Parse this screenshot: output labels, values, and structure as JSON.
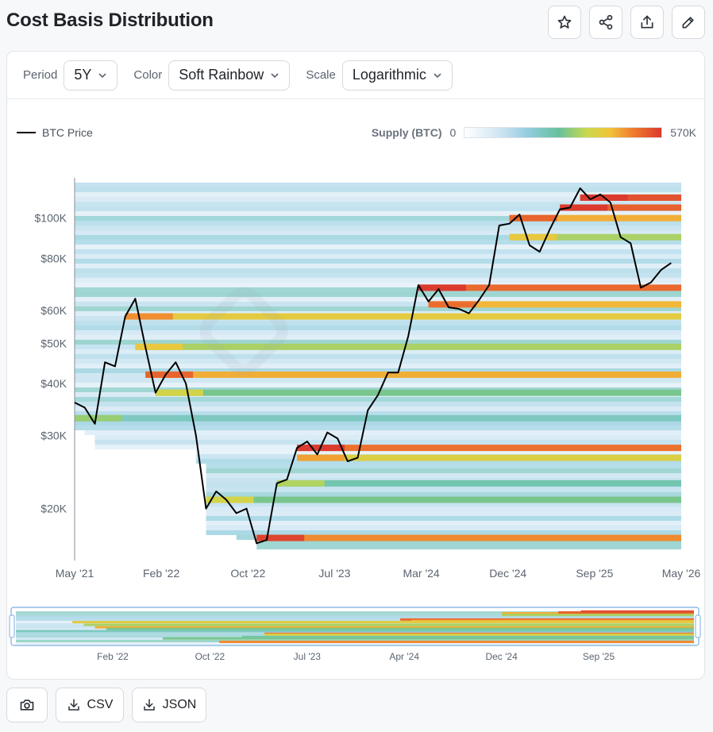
{
  "page": {
    "title": "Cost Basis Distribution"
  },
  "actions": {
    "star": "star-icon",
    "share": "share-icon",
    "export": "export-icon",
    "edit": "edit-icon"
  },
  "controls": {
    "period_label": "Period",
    "period_value": "5Y",
    "color_label": "Color",
    "color_value": "Soft Rainbow",
    "scale_label": "Scale",
    "scale_value": "Logarithmic"
  },
  "legend": {
    "price_label": "BTC Price",
    "supply_label": "Supply (BTC)",
    "supply_min": "0",
    "supply_max": "570K",
    "gradient_colors": [
      "#ffffff",
      "#cfe5f3",
      "#93cde0",
      "#66c19c",
      "#c9d94d",
      "#f2c23a",
      "#ef7a2e",
      "#db3a2e"
    ]
  },
  "navigator": {
    "ticks": [
      "Feb '22",
      "Oct '22",
      "Jul '23",
      "Apr '24",
      "Dec '24",
      "Sep '25"
    ]
  },
  "footer": {
    "csv_label": "CSV",
    "json_label": "JSON"
  },
  "chart_data": {
    "type": "heatmap",
    "scale": "log",
    "x_ticks": [
      "May '21",
      "Feb '22",
      "Oct '22",
      "Jul '23",
      "Mar '24",
      "Dec '24",
      "Sep '25",
      "May '26"
    ],
    "y_ticks": [
      "$20K",
      "$30K",
      "$40K",
      "$50K",
      "$60K",
      "$80K",
      "$100K"
    ],
    "y_tick_values": [
      20000,
      30000,
      40000,
      50000,
      60000,
      80000,
      100000
    ],
    "xlim": [
      "2021-05",
      "2026-05"
    ],
    "ylim": [
      15000,
      125000
    ],
    "price_series": {
      "name": "BTC Price",
      "x": [
        "2021-05",
        "2021-06",
        "2021-07",
        "2021-08",
        "2021-09",
        "2021-10",
        "2021-11",
        "2021-12",
        "2022-01",
        "2022-02",
        "2022-03",
        "2022-04",
        "2022-05",
        "2022-06",
        "2022-07",
        "2022-08",
        "2022-09",
        "2022-10",
        "2022-11",
        "2022-12",
        "2023-01",
        "2023-02",
        "2023-03",
        "2023-04",
        "2023-05",
        "2023-06",
        "2023-07",
        "2023-08",
        "2023-09",
        "2023-10",
        "2023-11",
        "2023-12",
        "2024-01",
        "2024-02",
        "2024-03",
        "2024-04",
        "2024-05",
        "2024-06",
        "2024-07",
        "2024-08",
        "2024-09",
        "2024-10",
        "2024-11",
        "2024-12",
        "2025-01",
        "2025-02",
        "2025-03",
        "2025-04",
        "2025-05",
        "2025-06",
        "2025-07",
        "2025-08",
        "2025-09",
        "2025-10",
        "2025-11",
        "2025-12",
        "2026-01",
        "2026-02",
        "2026-03",
        "2026-04"
      ],
      "y": [
        36000,
        35000,
        32000,
        45000,
        44000,
        58000,
        64000,
        49000,
        38000,
        42000,
        45000,
        40000,
        30000,
        20000,
        22000,
        21000,
        19500,
        20000,
        16500,
        16800,
        23000,
        23500,
        28000,
        29000,
        27000,
        30500,
        29500,
        26000,
        26500,
        34500,
        37500,
        42500,
        42500,
        52000,
        69000,
        63000,
        67500,
        61000,
        60500,
        59000,
        63500,
        69000,
        96000,
        97000,
        102000,
        86000,
        83000,
        94000,
        105000,
        106000,
        118000,
        111000,
        114000,
        109000,
        90000,
        87000,
        68000,
        70000,
        75000,
        78000
      ]
    },
    "supply_bands": [
      {
        "price": 100000,
        "from": "2024-12",
        "supply": 430000
      },
      {
        "price": 106000,
        "from": "2025-05",
        "supply": 520000
      },
      {
        "price": 112000,
        "from": "2025-07",
        "supply": 540000
      },
      {
        "price": 90000,
        "from": "2024-12",
        "supply": 300000
      },
      {
        "price": 68000,
        "from": "2024-03",
        "supply": 510000
      },
      {
        "price": 62000,
        "from": "2024-04",
        "supply": 420000
      },
      {
        "price": 58000,
        "from": "2021-10",
        "supply": 380000
      },
      {
        "price": 49000,
        "from": "2021-11",
        "supply": 300000
      },
      {
        "price": 42000,
        "from": "2021-12",
        "supply": 430000
      },
      {
        "price": 38000,
        "from": "2022-01",
        "supply": 260000
      },
      {
        "price": 33000,
        "from": "2021-05",
        "supply": 200000
      },
      {
        "price": 28000,
        "from": "2023-03",
        "supply": 500000
      },
      {
        "price": 26500,
        "from": "2023-03",
        "supply": 360000
      },
      {
        "price": 23000,
        "from": "2023-01",
        "supply": 220000
      },
      {
        "price": 21000,
        "from": "2022-06",
        "supply": 260000
      },
      {
        "price": 17000,
        "from": "2022-11",
        "supply": 470000
      }
    ],
    "supply_range": [
      0,
      570000
    ]
  }
}
